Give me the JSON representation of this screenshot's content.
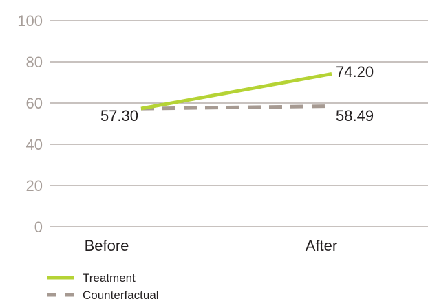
{
  "chart_data": {
    "type": "line",
    "title": "",
    "xlabel": "",
    "ylabel": "",
    "categories": [
      "Before",
      "After"
    ],
    "ylim": [
      0,
      100
    ],
    "yticks": [
      "0",
      "20",
      "40",
      "60",
      "80",
      "100"
    ],
    "grid": true,
    "legend_position": "bottom-left",
    "series": [
      {
        "name": "Treatment",
        "values": [
          57.3,
          74.2
        ],
        "labels": [
          "57.30",
          "74.20"
        ],
        "color": "#b5d335",
        "style": "solid"
      },
      {
        "name": "Counterfactual",
        "values": [
          57.3,
          58.49
        ],
        "labels": [
          "",
          "58.49"
        ],
        "color": "#a69a92",
        "style": "dashed"
      }
    ]
  },
  "colors": {
    "gridline": "#a79e99",
    "tick_text": "#a79e99",
    "label_text": "#231f20"
  }
}
